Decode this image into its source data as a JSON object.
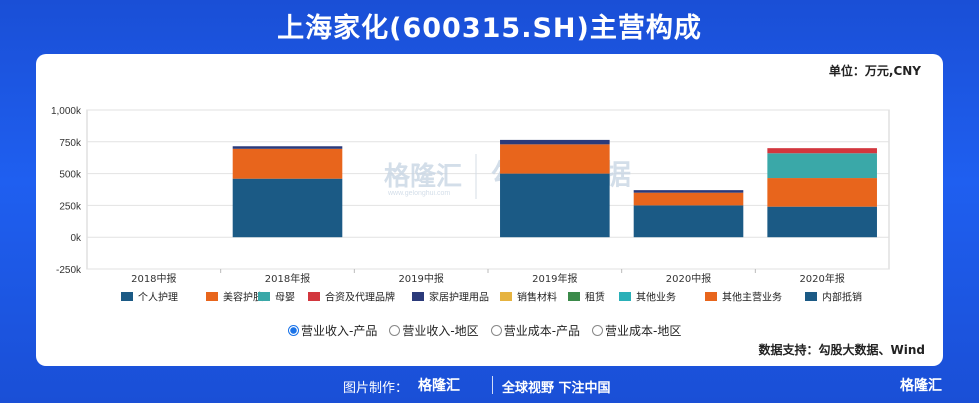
{
  "header": {
    "title": "上海家化(600315.SH)主营构成"
  },
  "unit_label": "单位：万元,CNY",
  "source_label": "数据支持：勾股大数据、Wind",
  "watermark": {
    "brand": "格隆汇",
    "site": "www.gelonghui.com",
    "data": "勾股大数据"
  },
  "footer": {
    "made_by": "图片制作：",
    "brand": "格隆汇",
    "slogan": "全球视野 下注中国",
    "brand_right": "格隆汇"
  },
  "radio_options": [
    {
      "label": "营业收入-产品",
      "selected": true
    },
    {
      "label": "营业收入-地区",
      "selected": false
    },
    {
      "label": "营业成本-产品",
      "selected": false
    },
    {
      "label": "营业成本-地区",
      "selected": false
    }
  ],
  "chart_data": {
    "type": "bar",
    "stacked": true,
    "categories": [
      "2018中报",
      "2018年报",
      "2019中报",
      "2019年报",
      "2020中报",
      "2020年报"
    ],
    "yticks": [
      "1,000k",
      "750k",
      "500k",
      "250k",
      "0k",
      "-250k"
    ],
    "ylim": [
      -250000,
      1000000
    ],
    "legend_position": "bottom",
    "series": [
      {
        "name": "个人护理",
        "color": "#1b5a85",
        "values": [
          null,
          460000,
          null,
          500000,
          250000,
          240000
        ]
      },
      {
        "name": "美容护肤",
        "color": "#e8651c",
        "values": [
          null,
          235000,
          null,
          230000,
          100000,
          225000
        ]
      },
      {
        "name": "母婴",
        "color": "#3aa8a8",
        "values": [
          null,
          null,
          null,
          null,
          null,
          195000
        ]
      },
      {
        "name": "合资及代理品牌",
        "color": "#d2373e",
        "values": [
          null,
          null,
          null,
          null,
          null,
          40000
        ]
      },
      {
        "name": "家居护理用品",
        "color": "#2b3a7a",
        "values": [
          null,
          20000,
          null,
          35000,
          20000,
          null
        ]
      },
      {
        "name": "销售材料",
        "color": "#e6b340",
        "values": [
          null,
          null,
          null,
          null,
          null,
          null
        ]
      },
      {
        "name": "租赁",
        "color": "#3b8a4a",
        "values": [
          null,
          null,
          null,
          null,
          null,
          null
        ]
      },
      {
        "name": "其他业务",
        "color": "#2ab0b8",
        "values": [
          null,
          null,
          null,
          null,
          null,
          null
        ]
      },
      {
        "name": "其他主营业务",
        "color": "#e8651c",
        "values": [
          null,
          null,
          null,
          null,
          null,
          null
        ]
      },
      {
        "name": "内部抵销",
        "color": "#1b5a85",
        "values": [
          null,
          null,
          null,
          null,
          null,
          null
        ]
      }
    ]
  }
}
